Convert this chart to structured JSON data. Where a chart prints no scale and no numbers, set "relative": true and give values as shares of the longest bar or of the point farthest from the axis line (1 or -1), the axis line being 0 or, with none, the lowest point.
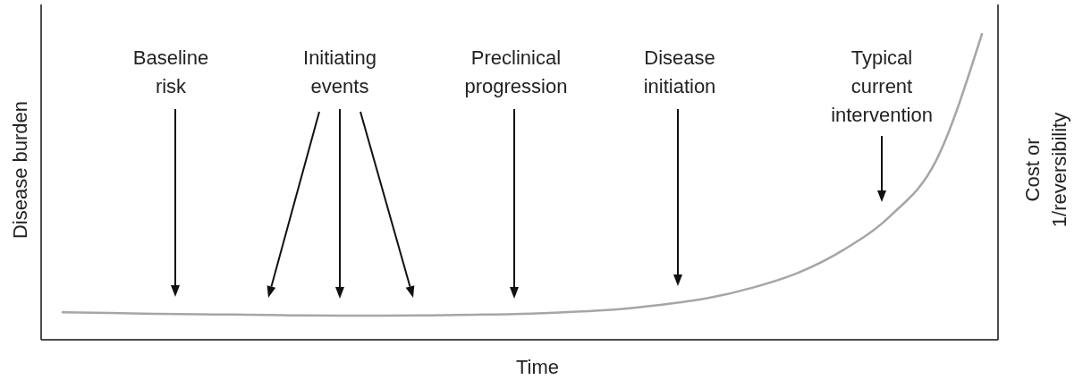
{
  "chart_data": {
    "type": "line",
    "relative": true,
    "xlabel": "Time",
    "ylabel": "Disease burden",
    "y2label": "Cost or\n1/reversibility",
    "categories": [
      null,
      null,
      null,
      null,
      null,
      null,
      null,
      null,
      null,
      null,
      null,
      null,
      null,
      null,
      null,
      null,
      null,
      null,
      null,
      null,
      null
    ],
    "values": [
      0.09,
      0.088,
      0.085,
      0.083,
      0.082,
      0.08,
      0.079,
      0.079,
      0.08,
      0.082,
      0.085,
      0.091,
      0.099,
      0.114,
      0.135,
      0.17,
      0.219,
      0.295,
      0.404,
      0.585,
      1
    ],
    "color": "#a6a6a6",
    "annotations": [
      "Baseline\nrisk",
      "Initiating\nevents",
      "Preclinical\nprogression",
      "Disease\ninitiation",
      "Typical\ncurrent\nintervention"
    ]
  }
}
